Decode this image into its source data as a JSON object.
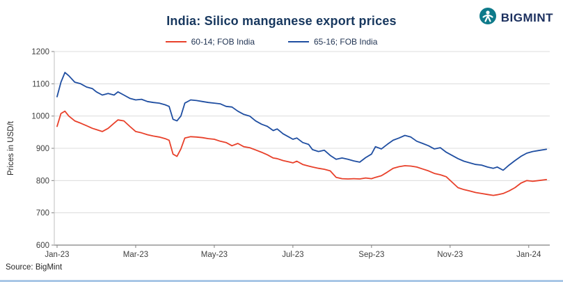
{
  "header": {
    "title": "India: Silico manganese export prices"
  },
  "logo": {
    "text": "BIGMINT",
    "icon": "bigmint-person-circle-icon",
    "icon_color": "#0e7a8a",
    "text_color": "#1b2f5e"
  },
  "source": {
    "label": "Source: BigMint"
  },
  "chart_data": {
    "type": "line",
    "title": "India: Silico manganese export prices",
    "xlabel": "",
    "ylabel": "Prices in USD/t",
    "ylim": [
      600,
      1200
    ],
    "y_ticks": [
      600,
      700,
      800,
      900,
      1000,
      1100,
      1200
    ],
    "x_range": [
      0,
      12.5
    ],
    "x_tick_positions": [
      0,
      2,
      4,
      6,
      8,
      10,
      12
    ],
    "x_tick_labels": [
      "Jan-23",
      "Mar-23",
      "May-23",
      "Jul-23",
      "Sep-23",
      "Nov-23",
      "Jan-24"
    ],
    "grid": true,
    "legend_position": "top",
    "x": [
      0,
      0.1,
      0.2,
      0.3,
      0.45,
      0.6,
      0.75,
      0.9,
      1.0,
      1.15,
      1.3,
      1.45,
      1.55,
      1.7,
      1.85,
      2.0,
      2.15,
      2.3,
      2.45,
      2.6,
      2.75,
      2.85,
      2.95,
      3.05,
      3.15,
      3.25,
      3.4,
      3.55,
      3.7,
      3.85,
      4.0,
      4.15,
      4.3,
      4.45,
      4.6,
      4.75,
      4.9,
      5.05,
      5.2,
      5.35,
      5.5,
      5.6,
      5.75,
      5.9,
      6.0,
      6.1,
      6.25,
      6.4,
      6.5,
      6.65,
      6.8,
      6.95,
      7.1,
      7.25,
      7.4,
      7.55,
      7.7,
      7.85,
      8.0,
      8.1,
      8.25,
      8.4,
      8.55,
      8.7,
      8.85,
      9.0,
      9.15,
      9.3,
      9.45,
      9.6,
      9.75,
      9.9,
      10.05,
      10.2,
      10.35,
      10.5,
      10.65,
      10.8,
      10.95,
      11.1,
      11.2,
      11.35,
      11.5,
      11.65,
      11.8,
      11.95,
      12.1,
      12.25,
      12.45
    ],
    "series": [
      {
        "name": "60-14; FOB India",
        "color": "#e8402a",
        "values": [
          968,
          1008,
          1015,
          1000,
          985,
          978,
          970,
          962,
          958,
          952,
          962,
          978,
          988,
          985,
          968,
          952,
          948,
          942,
          938,
          935,
          930,
          925,
          882,
          875,
          898,
          932,
          936,
          935,
          933,
          930,
          928,
          922,
          918,
          908,
          915,
          905,
          902,
          895,
          888,
          880,
          870,
          868,
          862,
          858,
          855,
          860,
          850,
          845,
          842,
          838,
          835,
          830,
          810,
          806,
          805,
          806,
          805,
          808,
          806,
          810,
          815,
          826,
          838,
          843,
          846,
          845,
          842,
          836,
          830,
          822,
          818,
          812,
          795,
          778,
          772,
          768,
          763,
          760,
          757,
          754,
          756,
          760,
          768,
          778,
          792,
          800,
          798,
          800,
          803
        ]
      },
      {
        "name": "65-16; FOB India",
        "color": "#1f4ea1",
        "values": [
          1060,
          1105,
          1135,
          1125,
          1105,
          1100,
          1090,
          1085,
          1075,
          1065,
          1070,
          1065,
          1075,
          1065,
          1055,
          1050,
          1052,
          1045,
          1042,
          1040,
          1035,
          1030,
          990,
          985,
          1000,
          1040,
          1050,
          1048,
          1045,
          1042,
          1040,
          1038,
          1030,
          1028,
          1015,
          1005,
          1000,
          985,
          975,
          968,
          955,
          960,
          945,
          935,
          928,
          932,
          918,
          912,
          896,
          890,
          894,
          878,
          866,
          870,
          866,
          861,
          857,
          871,
          882,
          905,
          898,
          912,
          925,
          932,
          940,
          935,
          922,
          915,
          908,
          898,
          902,
          888,
          878,
          868,
          860,
          855,
          850,
          848,
          842,
          838,
          842,
          832,
          848,
          862,
          875,
          885,
          890,
          893,
          897
        ]
      }
    ]
  }
}
